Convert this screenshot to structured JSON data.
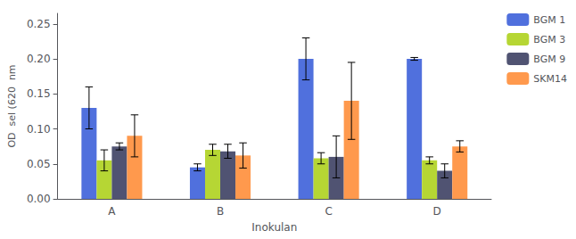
{
  "chart_data": {
    "type": "bar",
    "xlabel": "Inokulan",
    "ylabel": "OD  sel (620  nm",
    "categories": [
      "A",
      "B",
      "C",
      "D"
    ],
    "series": [
      {
        "name": "BGM 1",
        "values": [
          0.13,
          0.045,
          0.2,
          0.2
        ],
        "errors": [
          0.03,
          0.005,
          0.03,
          0.002
        ]
      },
      {
        "name": "BGM 3",
        "values": [
          0.055,
          0.07,
          0.058,
          0.055
        ],
        "errors": [
          0.015,
          0.008,
          0.008,
          0.005
        ]
      },
      {
        "name": "BGM 9",
        "values": [
          0.075,
          0.068,
          0.06,
          0.04
        ],
        "errors": [
          0.005,
          0.01,
          0.03,
          0.01
        ]
      },
      {
        "name": "SKM14",
        "values": [
          0.09,
          0.062,
          0.14,
          0.075
        ],
        "errors": [
          0.03,
          0.018,
          0.055,
          0.008
        ]
      }
    ],
    "ylim": [
      0.0,
      0.265
    ],
    "yticks": [
      {
        "value": 0.0,
        "label": "0.00"
      },
      0.05,
      {
        "value": 0.1,
        "label": "0.10"
      },
      0.15,
      {
        "value": 0.2,
        "label": "0.20"
      },
      0.25
    ],
    "grid": false,
    "legend": "right"
  }
}
